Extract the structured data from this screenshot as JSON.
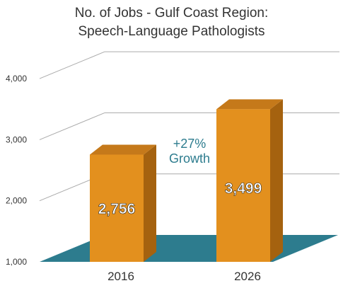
{
  "chart_data": {
    "type": "bar",
    "title_lines": [
      "No. of Jobs - Gulf Coast Region:",
      "Speech-Language Pathologists"
    ],
    "categories": [
      "2016",
      "2026"
    ],
    "values": [
      2756,
      3499
    ],
    "value_labels": [
      "2,756",
      "3,499"
    ],
    "ylim": [
      1000,
      4000
    ],
    "yticks": [
      1000,
      2000,
      3000,
      4000
    ],
    "ytick_labels": [
      "1,000",
      "2,000",
      "3,000",
      "4,000"
    ],
    "annotation": [
      "+27%",
      "Growth"
    ],
    "grid": true,
    "legend": "none",
    "colors": {
      "bar_front": "#E3901E",
      "bar_side": "#A5620F",
      "bar_top": "#C5791A",
      "floor": "#2D7C8E",
      "annotation": "#2D7C8E",
      "grid": "#AAAAAA",
      "axis_text": "#333333",
      "value_text": "#ffffff"
    }
  }
}
